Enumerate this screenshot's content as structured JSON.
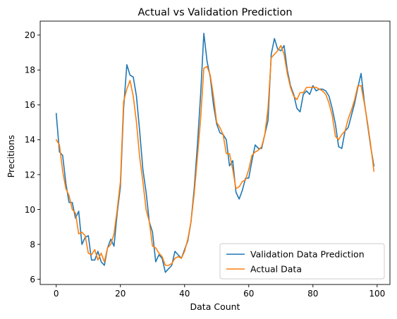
{
  "chart_data": {
    "type": "line",
    "title": "Actual vs Validation Prediction",
    "xlabel": "Data Count",
    "ylabel": "Precitions",
    "xlim": [
      -5,
      104
    ],
    "ylim": [
      5.7,
      20.8
    ],
    "xticks": [
      0,
      20,
      40,
      60,
      80,
      100
    ],
    "yticks": [
      6,
      8,
      10,
      12,
      14,
      16,
      18,
      20
    ],
    "grid": false,
    "legend_position": "lower right",
    "series": [
      {
        "name": "Validation Data Prediction",
        "color": "#1f77b4",
        "x": [
          0,
          1,
          2,
          3,
          4,
          5,
          6,
          7,
          8,
          9,
          10,
          11,
          12,
          13,
          14,
          15,
          16,
          17,
          18,
          19,
          20,
          21,
          22,
          23,
          24,
          25,
          26,
          27,
          28,
          29,
          30,
          31,
          32,
          33,
          34,
          35,
          36,
          37,
          38,
          39,
          40,
          41,
          42,
          43,
          44,
          45,
          46,
          47,
          48,
          49,
          50,
          51,
          52,
          53,
          54,
          55,
          56,
          57,
          58,
          59,
          60,
          61,
          62,
          63,
          64,
          65,
          66,
          67,
          68,
          69,
          70,
          71,
          72,
          73,
          74,
          75,
          76,
          77,
          78,
          79,
          80,
          81,
          82,
          83,
          84,
          85,
          86,
          87,
          88,
          89,
          90,
          91,
          92,
          93,
          94,
          95,
          96,
          97,
          98,
          99
        ],
        "values": [
          15.5,
          13.3,
          13.1,
          11.5,
          10.4,
          10.4,
          9.5,
          9.9,
          8.0,
          8.4,
          8.5,
          7.1,
          7.1,
          7.6,
          7.0,
          6.8,
          7.8,
          8.3,
          7.9,
          9.8,
          11.3,
          15.8,
          18.3,
          17.7,
          17.6,
          16.5,
          14.5,
          12.3,
          11.0,
          9.3,
          8.7,
          7.0,
          7.4,
          7.2,
          6.4,
          6.6,
          6.8,
          7.6,
          7.4,
          7.2,
          7.7,
          8.2,
          9.3,
          11.2,
          13.7,
          16.6,
          20.1,
          18.5,
          17.6,
          16.0,
          14.9,
          14.4,
          14.3,
          14.0,
          12.5,
          12.8,
          11.0,
          10.6,
          11.1,
          11.8,
          11.8,
          12.8,
          13.7,
          13.5,
          13.5,
          14.3,
          15.1,
          18.9,
          19.8,
          19.2,
          19.1,
          19.4,
          18.0,
          17.1,
          16.6,
          15.8,
          15.6,
          16.6,
          16.8,
          16.6,
          17.1,
          16.8,
          16.9,
          16.9,
          16.8,
          16.5,
          15.8,
          14.9,
          13.6,
          13.5,
          14.5,
          14.7,
          15.4,
          16.1,
          17.0,
          17.8,
          16.2,
          14.9,
          13.6,
          12.5
        ]
      },
      {
        "name": "Actual Data",
        "color": "#ff7f0e",
        "x": [
          0,
          1,
          2,
          3,
          4,
          5,
          6,
          7,
          8,
          9,
          10,
          11,
          12,
          13,
          14,
          15,
          16,
          17,
          18,
          19,
          20,
          21,
          22,
          23,
          24,
          25,
          26,
          27,
          28,
          29,
          30,
          31,
          32,
          33,
          34,
          35,
          36,
          37,
          38,
          39,
          40,
          41,
          42,
          43,
          44,
          45,
          46,
          47,
          48,
          49,
          50,
          51,
          52,
          53,
          54,
          55,
          56,
          57,
          58,
          59,
          60,
          61,
          62,
          63,
          64,
          65,
          66,
          67,
          68,
          69,
          70,
          71,
          72,
          73,
          74,
          75,
          76,
          77,
          78,
          79,
          80,
          81,
          82,
          83,
          84,
          85,
          86,
          87,
          88,
          89,
          90,
          91,
          92,
          93,
          94,
          95,
          96,
          97,
          98,
          99
        ],
        "values": [
          14.0,
          13.7,
          12.2,
          11.2,
          10.8,
          10.0,
          9.8,
          8.6,
          8.7,
          8.5,
          7.5,
          7.4,
          7.7,
          7.1,
          7.5,
          7.0,
          7.8,
          8.0,
          8.6,
          10.0,
          11.6,
          16.2,
          16.9,
          17.4,
          16.5,
          15.0,
          13.0,
          11.6,
          10.0,
          9.3,
          7.9,
          7.8,
          7.5,
          7.3,
          6.8,
          6.8,
          6.9,
          7.2,
          7.3,
          7.2,
          7.6,
          8.3,
          9.3,
          10.9,
          13.0,
          15.2,
          18.1,
          18.2,
          17.7,
          16.5,
          15.0,
          14.7,
          14.3,
          13.2,
          13.2,
          12.3,
          11.2,
          11.3,
          11.6,
          11.7,
          12.3,
          13.1,
          13.3,
          13.4,
          13.6,
          14.3,
          15.8,
          18.7,
          18.9,
          19.1,
          19.4,
          18.9,
          17.8,
          17.0,
          16.5,
          16.3,
          16.7,
          16.7,
          17.0,
          17.0,
          17.0,
          17.0,
          16.9,
          16.8,
          16.6,
          16.1,
          15.4,
          14.2,
          14.0,
          14.3,
          14.5,
          15.2,
          15.7,
          16.3,
          17.1,
          17.1,
          16.1,
          15.0,
          13.7,
          12.2
        ]
      }
    ]
  }
}
